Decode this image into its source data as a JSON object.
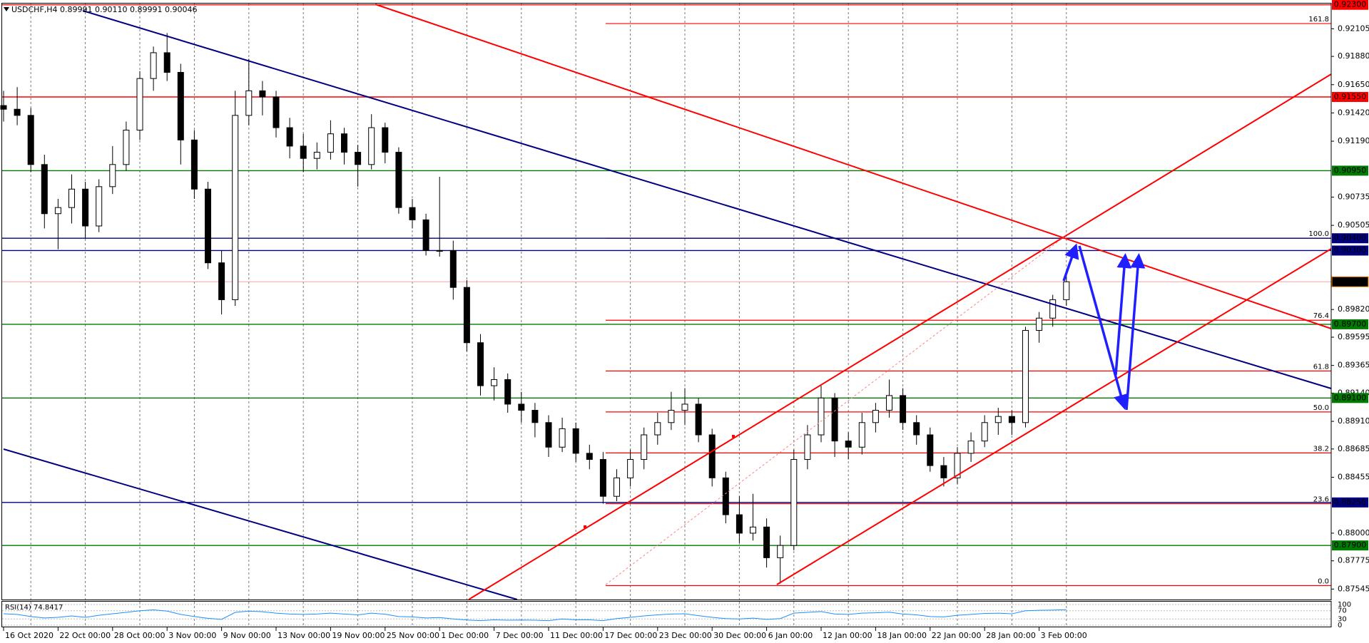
{
  "chart_data": [
    {
      "type": "candlestick",
      "title": "USDCHF,H4  0.89991 0.90110 0.89991 0.90046",
      "categories": [
        "16 Oct 2020",
        null,
        null,
        null,
        "22 Oct 00:00",
        null,
        null,
        null,
        "28 Oct 00:00",
        null,
        null,
        null,
        "3 Nov 00:00",
        null,
        null,
        null,
        "9 Nov 00:00",
        null,
        null,
        null,
        "13 Nov 00:00",
        null,
        null,
        null,
        "19 Nov 00:00",
        null,
        null,
        null,
        "25 Nov 00:00",
        null,
        null,
        null,
        "1 Dec 00:00",
        null,
        null,
        null,
        "7 Dec 00:00",
        null,
        null,
        null,
        "11 Dec 00:00",
        null,
        null,
        null,
        "17 Dec 00:00",
        null,
        null,
        null,
        "23 Dec 00:00",
        null,
        null,
        null,
        "30 Dec 00:00",
        null,
        null,
        null,
        "6 Jan 00:00",
        null,
        null,
        null,
        "12 Jan 00:00",
        null,
        null,
        null,
        "18 Jan 00:00",
        null,
        null,
        null,
        "22 Jan 00:00",
        null,
        null,
        null,
        "28 Jan 00:00",
        null,
        null,
        null,
        "3 Feb 00:00",
        null,
        null
      ],
      "open": [
        0.9148,
        0.9145,
        0.914,
        0.91,
        0.906,
        0.9065,
        0.908,
        0.905,
        0.9082,
        0.91,
        0.9128,
        0.917,
        0.9191,
        0.9175,
        0.912,
        0.908,
        0.902,
        0.899,
        0.914,
        0.916,
        0.9155,
        0.913,
        0.9115,
        0.9105,
        0.911,
        0.9125,
        0.911,
        0.91,
        0.913,
        0.911,
        0.9065,
        0.9055,
        0.903,
        0.903,
        0.9,
        0.8955,
        0.892,
        0.8925,
        0.8905,
        0.89,
        0.889,
        0.887,
        0.8885,
        0.8865,
        0.886,
        0.883,
        0.8845,
        0.886,
        0.888,
        0.889,
        0.89,
        0.8905,
        0.888,
        0.8845,
        0.8815,
        0.88,
        0.8805,
        0.878,
        0.879,
        0.886,
        0.888,
        0.891,
        0.8875,
        0.887,
        0.889,
        0.89,
        0.8912,
        0.889,
        0.888,
        0.8855,
        0.8845,
        0.8865,
        0.8875,
        0.889,
        0.8895,
        0.889,
        0.8965,
        0.8975,
        0.899
      ],
      "high": [
        0.916,
        0.9163,
        0.9146,
        0.9108,
        0.9072,
        0.9092,
        0.9086,
        0.9088,
        0.9115,
        0.9135,
        0.9176,
        0.9196,
        0.9207,
        0.9182,
        0.9128,
        0.9086,
        0.903,
        0.916,
        0.9186,
        0.9168,
        0.916,
        0.9138,
        0.9125,
        0.9118,
        0.9136,
        0.913,
        0.9116,
        0.9141,
        0.9134,
        0.9114,
        0.9072,
        0.906,
        0.909,
        0.9038,
        0.9006,
        0.8962,
        0.8935,
        0.893,
        0.8915,
        0.8906,
        0.8896,
        0.8894,
        0.889,
        0.8872,
        0.8866,
        0.8852,
        0.8868,
        0.8886,
        0.8898,
        0.8915,
        0.8918,
        0.891,
        0.8885,
        0.885,
        0.883,
        0.8832,
        0.8812,
        0.8798,
        0.8868,
        0.8888,
        0.892,
        0.8914,
        0.8882,
        0.8898,
        0.8906,
        0.8925,
        0.8918,
        0.8896,
        0.8886,
        0.8862,
        0.887,
        0.8882,
        0.8896,
        0.8902,
        0.89,
        0.8968,
        0.898,
        0.8994,
        0.9011
      ],
      "low": [
        0.9135,
        0.9132,
        0.9094,
        0.9048,
        0.9031,
        0.9052,
        0.904,
        0.9045,
        0.9076,
        0.9095,
        0.912,
        0.916,
        0.9168,
        0.91,
        0.9072,
        0.9015,
        0.8978,
        0.8985,
        0.9132,
        0.914,
        0.9122,
        0.9105,
        0.9094,
        0.9096,
        0.9104,
        0.91,
        0.9082,
        0.9096,
        0.9101,
        0.906,
        0.9048,
        0.9026,
        0.9025,
        0.899,
        0.8948,
        0.8912,
        0.8908,
        0.8898,
        0.889,
        0.8878,
        0.8862,
        0.8866,
        0.8858,
        0.8852,
        0.8824,
        0.8826,
        0.8838,
        0.8852,
        0.8872,
        0.8884,
        0.8888,
        0.8874,
        0.8838,
        0.8808,
        0.8792,
        0.8794,
        0.8772,
        0.8759,
        0.8786,
        0.8852,
        0.8874,
        0.8862,
        0.886,
        0.8864,
        0.8882,
        0.8894,
        0.8884,
        0.8872,
        0.885,
        0.8838,
        0.884,
        0.8858,
        0.887,
        0.888,
        0.888,
        0.8886,
        0.8955,
        0.8968,
        0.8985
      ],
      "close": [
        0.9145,
        0.914,
        0.91,
        0.906,
        0.9065,
        0.908,
        0.905,
        0.9082,
        0.91,
        0.9128,
        0.917,
        0.9191,
        0.9175,
        0.912,
        0.908,
        0.902,
        0.899,
        0.914,
        0.916,
        0.9155,
        0.913,
        0.9115,
        0.9105,
        0.911,
        0.9125,
        0.911,
        0.91,
        0.913,
        0.911,
        0.9065,
        0.9055,
        0.903,
        0.903,
        0.9,
        0.8955,
        0.892,
        0.8925,
        0.8905,
        0.89,
        0.889,
        0.887,
        0.8885,
        0.8865,
        0.886,
        0.883,
        0.8845,
        0.886,
        0.888,
        0.889,
        0.89,
        0.8905,
        0.888,
        0.8845,
        0.8815,
        0.88,
        0.8805,
        0.878,
        0.879,
        0.886,
        0.888,
        0.891,
        0.8875,
        0.887,
        0.889,
        0.89,
        0.8912,
        0.889,
        0.888,
        0.8855,
        0.8845,
        0.8865,
        0.8875,
        0.889,
        0.8895,
        0.889,
        0.8965,
        0.8975,
        0.899,
        0.90046
      ],
      "up_color": "#ffffff",
      "down_color": "#000000",
      "ylim": [
        0.8746,
        0.9231
      ],
      "yticks": [
        0.92105,
        {
          "value": 0.9188,
          "label": "0.91880"
        },
        {
          "value": 0.9165,
          "label": "0.91650"
        },
        {
          "value": 0.9142,
          "label": "0.91420"
        },
        {
          "value": 0.9119,
          "label": "0.91190"
        },
        0.90735,
        0.90505,
        {
          "value": 0.8982,
          "label": "0.89820"
        },
        0.89595,
        0.89365,
        {
          "value": 0.8914,
          "label": "0.89140"
        },
        {
          "value": 0.8891,
          "label": "0.88910"
        },
        0.88685,
        0.88455,
        {
          "value": 0.88,
          "label": "0.88000"
        },
        0.87775,
        0.87545
      ],
      "grid": true,
      "levels": [
        {
          "value": 0.923,
          "label": "0.92300",
          "color": "#ff0000"
        },
        {
          "value": 0.9155,
          "label": "0.91550",
          "color": "#ff0000"
        },
        {
          "value": 0.9095,
          "label": "0.90950",
          "color": "#007a00"
        },
        {
          "value": 0.904,
          "label": "0.90400",
          "color": "#000080"
        },
        {
          "value": 0.903,
          "label": "0.90300",
          "color": "#000080"
        },
        {
          "value": 0.897,
          "label": "0.89700",
          "color": "#007a00"
        },
        {
          "value": 0.891,
          "label": "0.89100",
          "color": "#007a00"
        },
        {
          "value": 0.8825,
          "label": "0.88250",
          "color": "#000080"
        },
        {
          "value": 0.879,
          "label": "0.87900",
          "color": "#007a00"
        }
      ],
      "last_price": 0.90046,
      "fib": {
        "low": 0.87573,
        "high": 0.904,
        "color": "#ff0000",
        "levels": [
          161.8,
          {
            "value": 100,
            "label": "100.0"
          },
          76.4,
          61.8,
          {
            "value": 50,
            "label": "50.0"
          },
          38.2,
          23.6,
          {
            "value": 0,
            "label": "0.0"
          }
        ]
      }
    },
    {
      "type": "line",
      "title": "RSI(14) 74.8417",
      "values": [
        55,
        52,
        42,
        35,
        38,
        45,
        38,
        48,
        55,
        62,
        70,
        74,
        68,
        52,
        42,
        33,
        28,
        62,
        68,
        65,
        58,
        54,
        52,
        54,
        58,
        54,
        50,
        58,
        53,
        42,
        40,
        35,
        37,
        30,
        25,
        22,
        26,
        24,
        25,
        24,
        22,
        30,
        26,
        26,
        22,
        32,
        38,
        45,
        50,
        54,
        55,
        46,
        38,
        32,
        30,
        34,
        28,
        32,
        58,
        62,
        66,
        54,
        52,
        58,
        60,
        63,
        54,
        50,
        42,
        40,
        48,
        52,
        57,
        58,
        55,
        70,
        72,
        73,
        74.8417
      ],
      "color": "#1e90ff",
      "ylim": [
        0,
        100
      ],
      "yticks": [
        100,
        70,
        30,
        0
      ]
    }
  ]
}
